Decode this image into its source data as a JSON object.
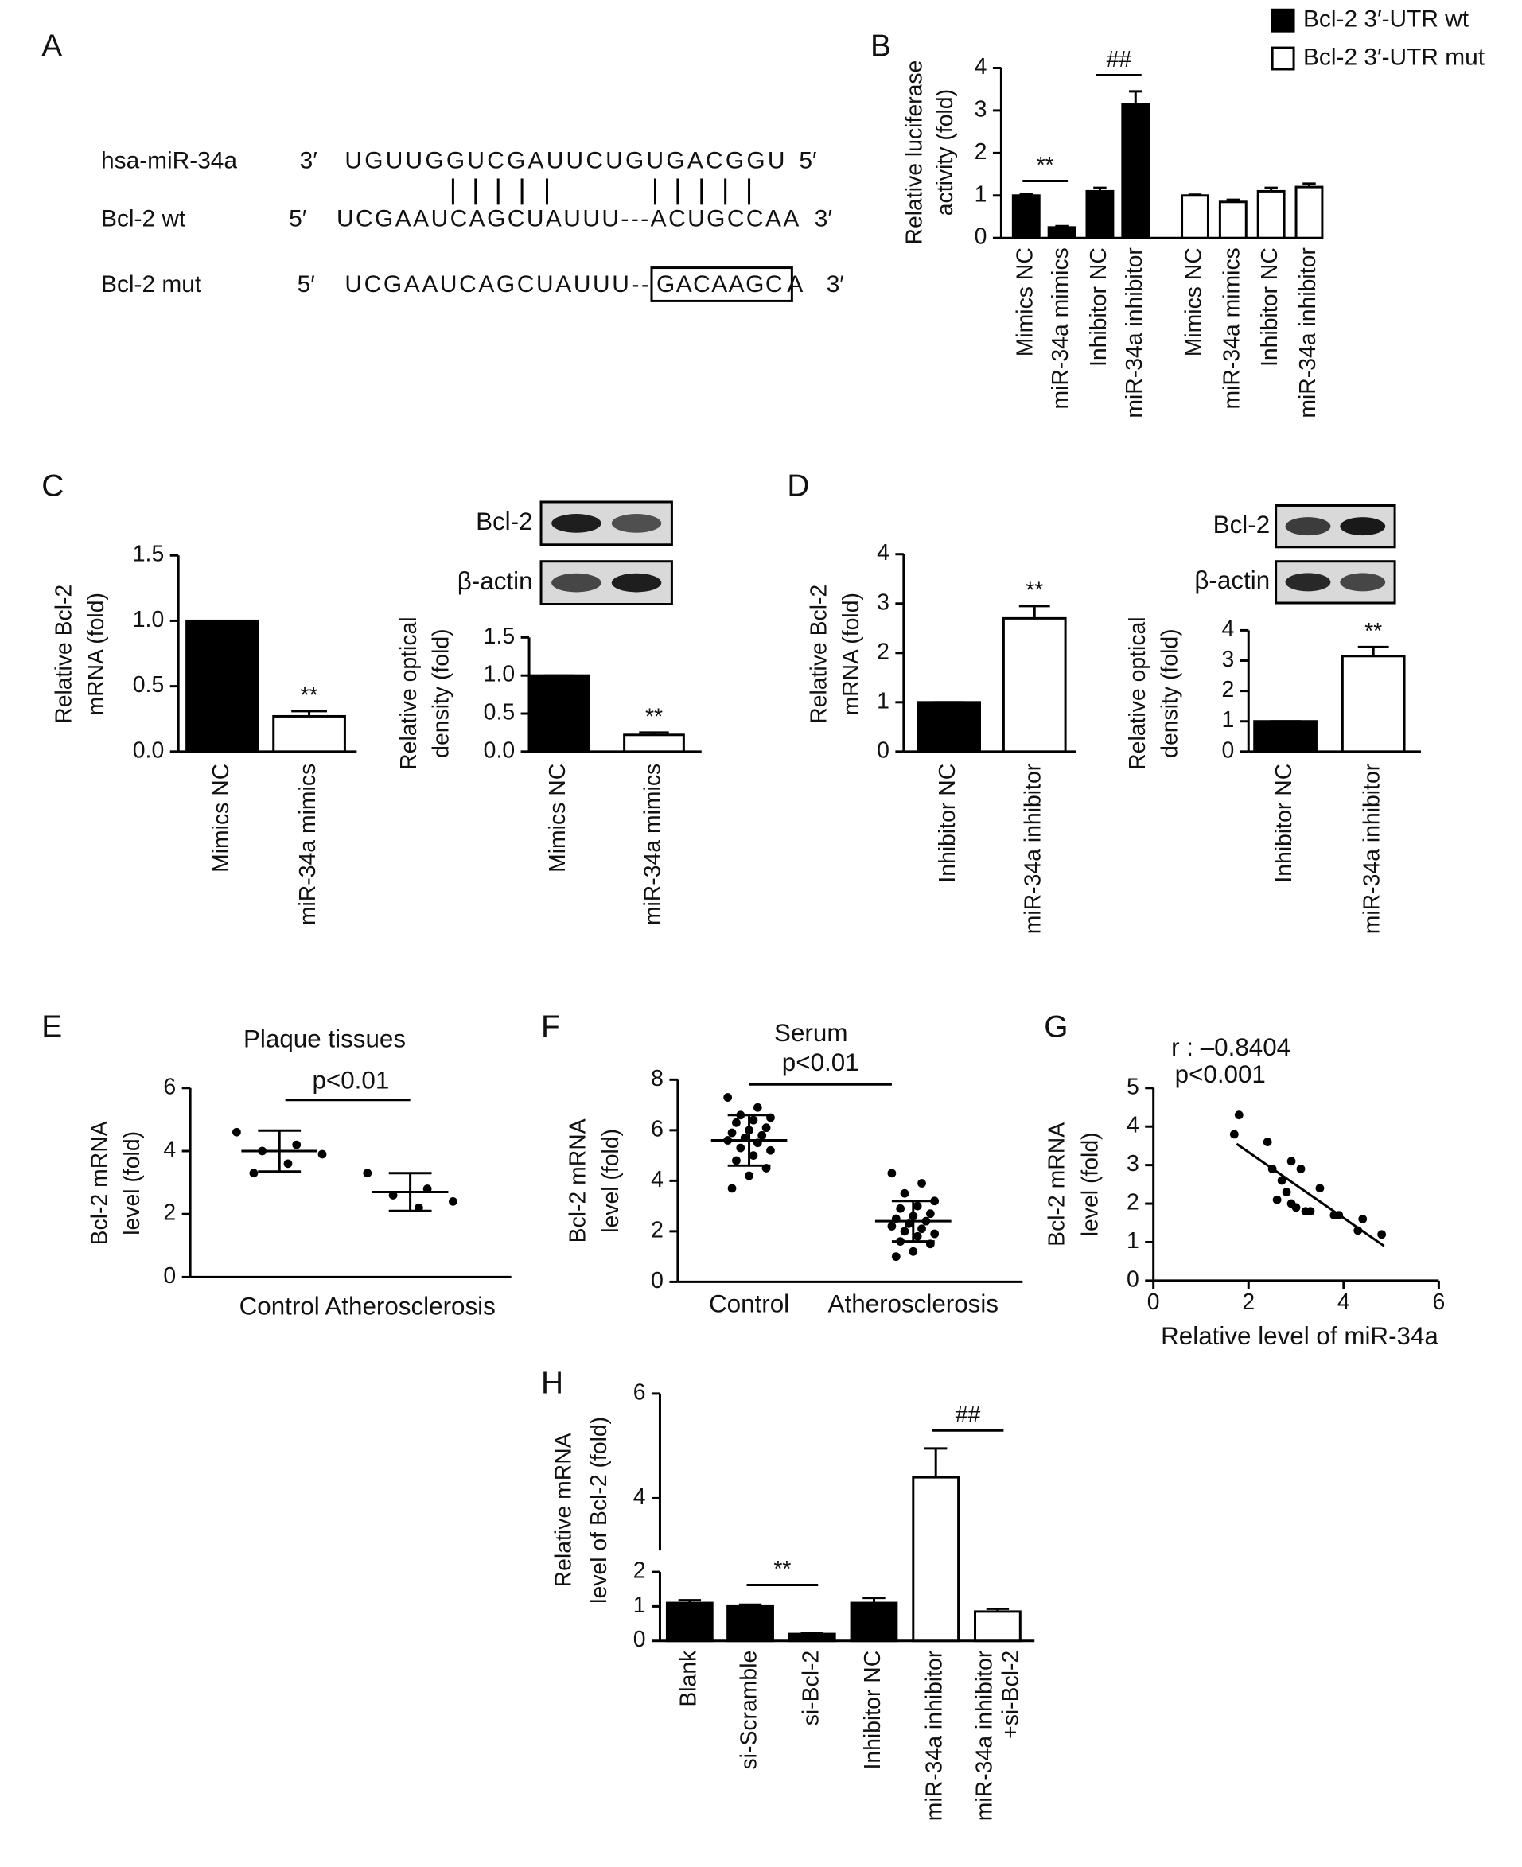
{
  "sequence": {
    "panel": "A",
    "rows": [
      {
        "label": "hsa-miR-34a",
        "start": "3′",
        "seq": [
          "UGUUGGUCGAUUCUGUGACGGU"
        ],
        "end": "5′"
      },
      {
        "label": "Bcl-2 wt",
        "start": "5′",
        "seq": [
          "UCGAAUCAGCUAUUU---ACUGCCAA"
        ],
        "end": "3′"
      },
      {
        "label": "Bcl-2 mut",
        "start": "5′",
        "seq": [
          "UCGAAUCAGCUAUUU--",
          "GACAAGC",
          "A"
        ],
        "end": "3′"
      }
    ]
  },
  "chart_data": [
    {
      "type": "bar",
      "panel": "B",
      "ylabel": [
        "Relative luciferase",
        "activity (fold)"
      ],
      "categories": [
        "Mimics NC",
        "miR-34a mimics",
        "Inhibitor NC",
        "miR-34a inhibitor",
        "Mimics NC",
        "miR-34a mimics",
        "Inhibitor NC",
        "miR-34a inhibitor"
      ],
      "series": [
        {
          "name": "Bcl-2 3′-UTR wt",
          "color": "#000000",
          "values": [
            1,
            0.25,
            1.1,
            3.15,
            null,
            null,
            null,
            null
          ],
          "errors": [
            0.03,
            0.03,
            0.08,
            0.3,
            null,
            null,
            null,
            null
          ]
        },
        {
          "name": "Bcl-2 3′-UTR mut",
          "color": "#ffffff",
          "values": [
            null,
            null,
            null,
            null,
            1,
            0.85,
            1.1,
            1.2
          ],
          "errors": [
            null,
            null,
            null,
            null,
            0.02,
            0.05,
            0.08,
            0.08
          ]
        }
      ],
      "annotations": [
        "**",
        "##"
      ],
      "ylim": [
        0,
        4
      ],
      "yticks": [
        0,
        1,
        2,
        3,
        4
      ],
      "legend": "top-right"
    },
    {
      "type": "bar",
      "panel": "C",
      "ylabel": [
        "Relative Bcl-2",
        "mRNA (fold)"
      ],
      "categories": [
        "Mimics NC",
        "miR-34a mimics"
      ],
      "values": [
        1,
        0.27
      ],
      "errors": [
        0,
        0.04
      ],
      "colors": [
        "#000000",
        "#ffffff"
      ],
      "annotations": [
        "**"
      ],
      "ylim": [
        0,
        1.5
      ],
      "yticks": [
        {
          "value": 0,
          "label": "0.0"
        },
        0.5,
        {
          "value": 1,
          "label": "1.0"
        },
        1.5
      ]
    },
    {
      "type": "bar",
      "ylabel": [
        "Relative optical",
        "density (fold)"
      ],
      "blot": [
        "Bcl-2",
        "β-actin"
      ],
      "categories": [
        "Mimics NC",
        "miR-34a mimics"
      ],
      "values": [
        1,
        0.22
      ],
      "errors": [
        0,
        0.03
      ],
      "colors": [
        "#000000",
        "#ffffff"
      ],
      "annotations": [
        "**"
      ],
      "ylim": [
        0,
        1.5
      ],
      "yticks": [
        {
          "value": 0,
          "label": "0.0"
        },
        0.5,
        {
          "value": 1,
          "label": "1.0"
        },
        1.5
      ]
    },
    {
      "type": "bar",
      "panel": "D",
      "ylabel": [
        "Relative Bcl-2",
        "mRNA (fold)"
      ],
      "categories": [
        "Inhibitor NC",
        "miR-34a inhibitor"
      ],
      "values": [
        1,
        2.7
      ],
      "errors": [
        0,
        0.25
      ],
      "colors": [
        "#000000",
        "#ffffff"
      ],
      "annotations": [
        "**"
      ],
      "ylim": [
        0,
        4
      ],
      "yticks": [
        0,
        1,
        2,
        3,
        4
      ]
    },
    {
      "type": "bar",
      "ylabel": [
        "Relative optical",
        "density (fold)"
      ],
      "blot": [
        "Bcl-2",
        "β-actin"
      ],
      "categories": [
        "Inhibitor NC",
        "miR-34a inhibitor"
      ],
      "values": [
        1,
        3.15
      ],
      "errors": [
        0,
        0.3
      ],
      "colors": [
        "#000000",
        "#ffffff"
      ],
      "annotations": [
        "**"
      ],
      "ylim": [
        0,
        4
      ],
      "yticks": [
        0,
        1,
        2,
        3,
        4
      ]
    },
    {
      "type": "dot",
      "panel": "E",
      "title": "Plaque tissues",
      "ylabel": [
        "Bcl-2 mRNA",
        "level (fold)"
      ],
      "categories": [
        "Control",
        "Atherosclerosis"
      ],
      "values": [
        [
          4.6,
          4.2,
          4.0,
          3.9,
          3.6,
          3.3
        ],
        [
          3.3,
          2.8,
          2.6,
          2.4,
          2.2
        ]
      ],
      "means": [
        4.0,
        2.7
      ],
      "sds": [
        0.65,
        0.6
      ],
      "annotations": [
        "p<0.01"
      ],
      "ylim": [
        0,
        6
      ],
      "yticks": [
        0,
        2,
        4,
        6
      ]
    },
    {
      "type": "dot",
      "panel": "F",
      "title": "Serum",
      "ylabel": [
        "Bcl-2 mRNA",
        "level (fold)"
      ],
      "categories": [
        "Control",
        "Atherosclerosis"
      ],
      "values": [
        [
          7.3,
          6.9,
          6.6,
          6.5,
          6.4,
          6.3,
          6.1,
          6.0,
          5.9,
          5.8,
          5.7,
          5.6,
          5.5,
          5.3,
          5.2,
          5.0,
          4.8,
          4.5,
          4.2,
          3.7
        ],
        [
          4.3,
          3.9,
          3.5,
          3.2,
          3.0,
          2.9,
          2.7,
          2.6,
          2.5,
          2.4,
          2.3,
          2.2,
          2.1,
          2.0,
          1.9,
          1.8,
          1.6,
          1.5,
          1.2,
          1.0
        ]
      ],
      "means": [
        5.6,
        2.4
      ],
      "sds": [
        1.0,
        0.8
      ],
      "annotations": [
        "p<0.01"
      ],
      "ylim": [
        0,
        8
      ],
      "yticks": [
        0,
        2,
        4,
        6,
        8
      ]
    },
    {
      "type": "scatter",
      "panel": "G",
      "ylabel": [
        "Bcl-2 mRNA",
        "level (fold)"
      ],
      "xlabel": "Relative level of miR-34a",
      "x": [
        1.7,
        1.8,
        2.4,
        2.5,
        2.6,
        2.7,
        2.8,
        2.9,
        2.9,
        3.0,
        3.1,
        3.2,
        3.3,
        3.5,
        3.8,
        3.9,
        4.3,
        4.4,
        4.8
      ],
      "y": [
        3.8,
        4.3,
        3.6,
        2.9,
        2.1,
        2.6,
        2.3,
        3.1,
        2.0,
        1.9,
        2.9,
        1.8,
        1.8,
        2.4,
        1.7,
        1.7,
        1.3,
        1.6,
        1.2
      ],
      "trendline": {
        "x": [
          1.75,
          4.85
        ],
        "y": [
          3.55,
          0.9
        ]
      },
      "annotations": [
        "r : –0.8404",
        "p<0.001"
      ],
      "xlim": [
        0,
        6
      ],
      "xticks": [
        0,
        2,
        4,
        6
      ],
      "ylim": [
        0,
        5
      ],
      "yticks": [
        0,
        1,
        2,
        3,
        4,
        5
      ]
    },
    {
      "type": "bar",
      "panel": "H",
      "ylabel": [
        "Relative mRNA",
        "level of Bcl-2 (fold)"
      ],
      "categories": [
        "Blank",
        "si-Scramble",
        "si-Bcl-2",
        "Inhibitor NC",
        "miR-34a inhibitor",
        [
          "miR-34a inhibitor",
          "+si-Bcl-2"
        ]
      ],
      "values": [
        1.1,
        1.0,
        0.2,
        1.1,
        4.4,
        0.85
      ],
      "errors": [
        0.08,
        0.05,
        0.03,
        0.15,
        0.55,
        0.08
      ],
      "colors": [
        "#000000",
        "#000000",
        "#000000",
        "#000000",
        "#ffffff",
        "#ffffff"
      ],
      "annotations": [
        "**",
        "##"
      ],
      "ylim": [
        0,
        6
      ],
      "ybreak": [
        2,
        3
      ],
      "yticks": [
        0,
        1,
        2,
        4,
        6
      ]
    }
  ]
}
